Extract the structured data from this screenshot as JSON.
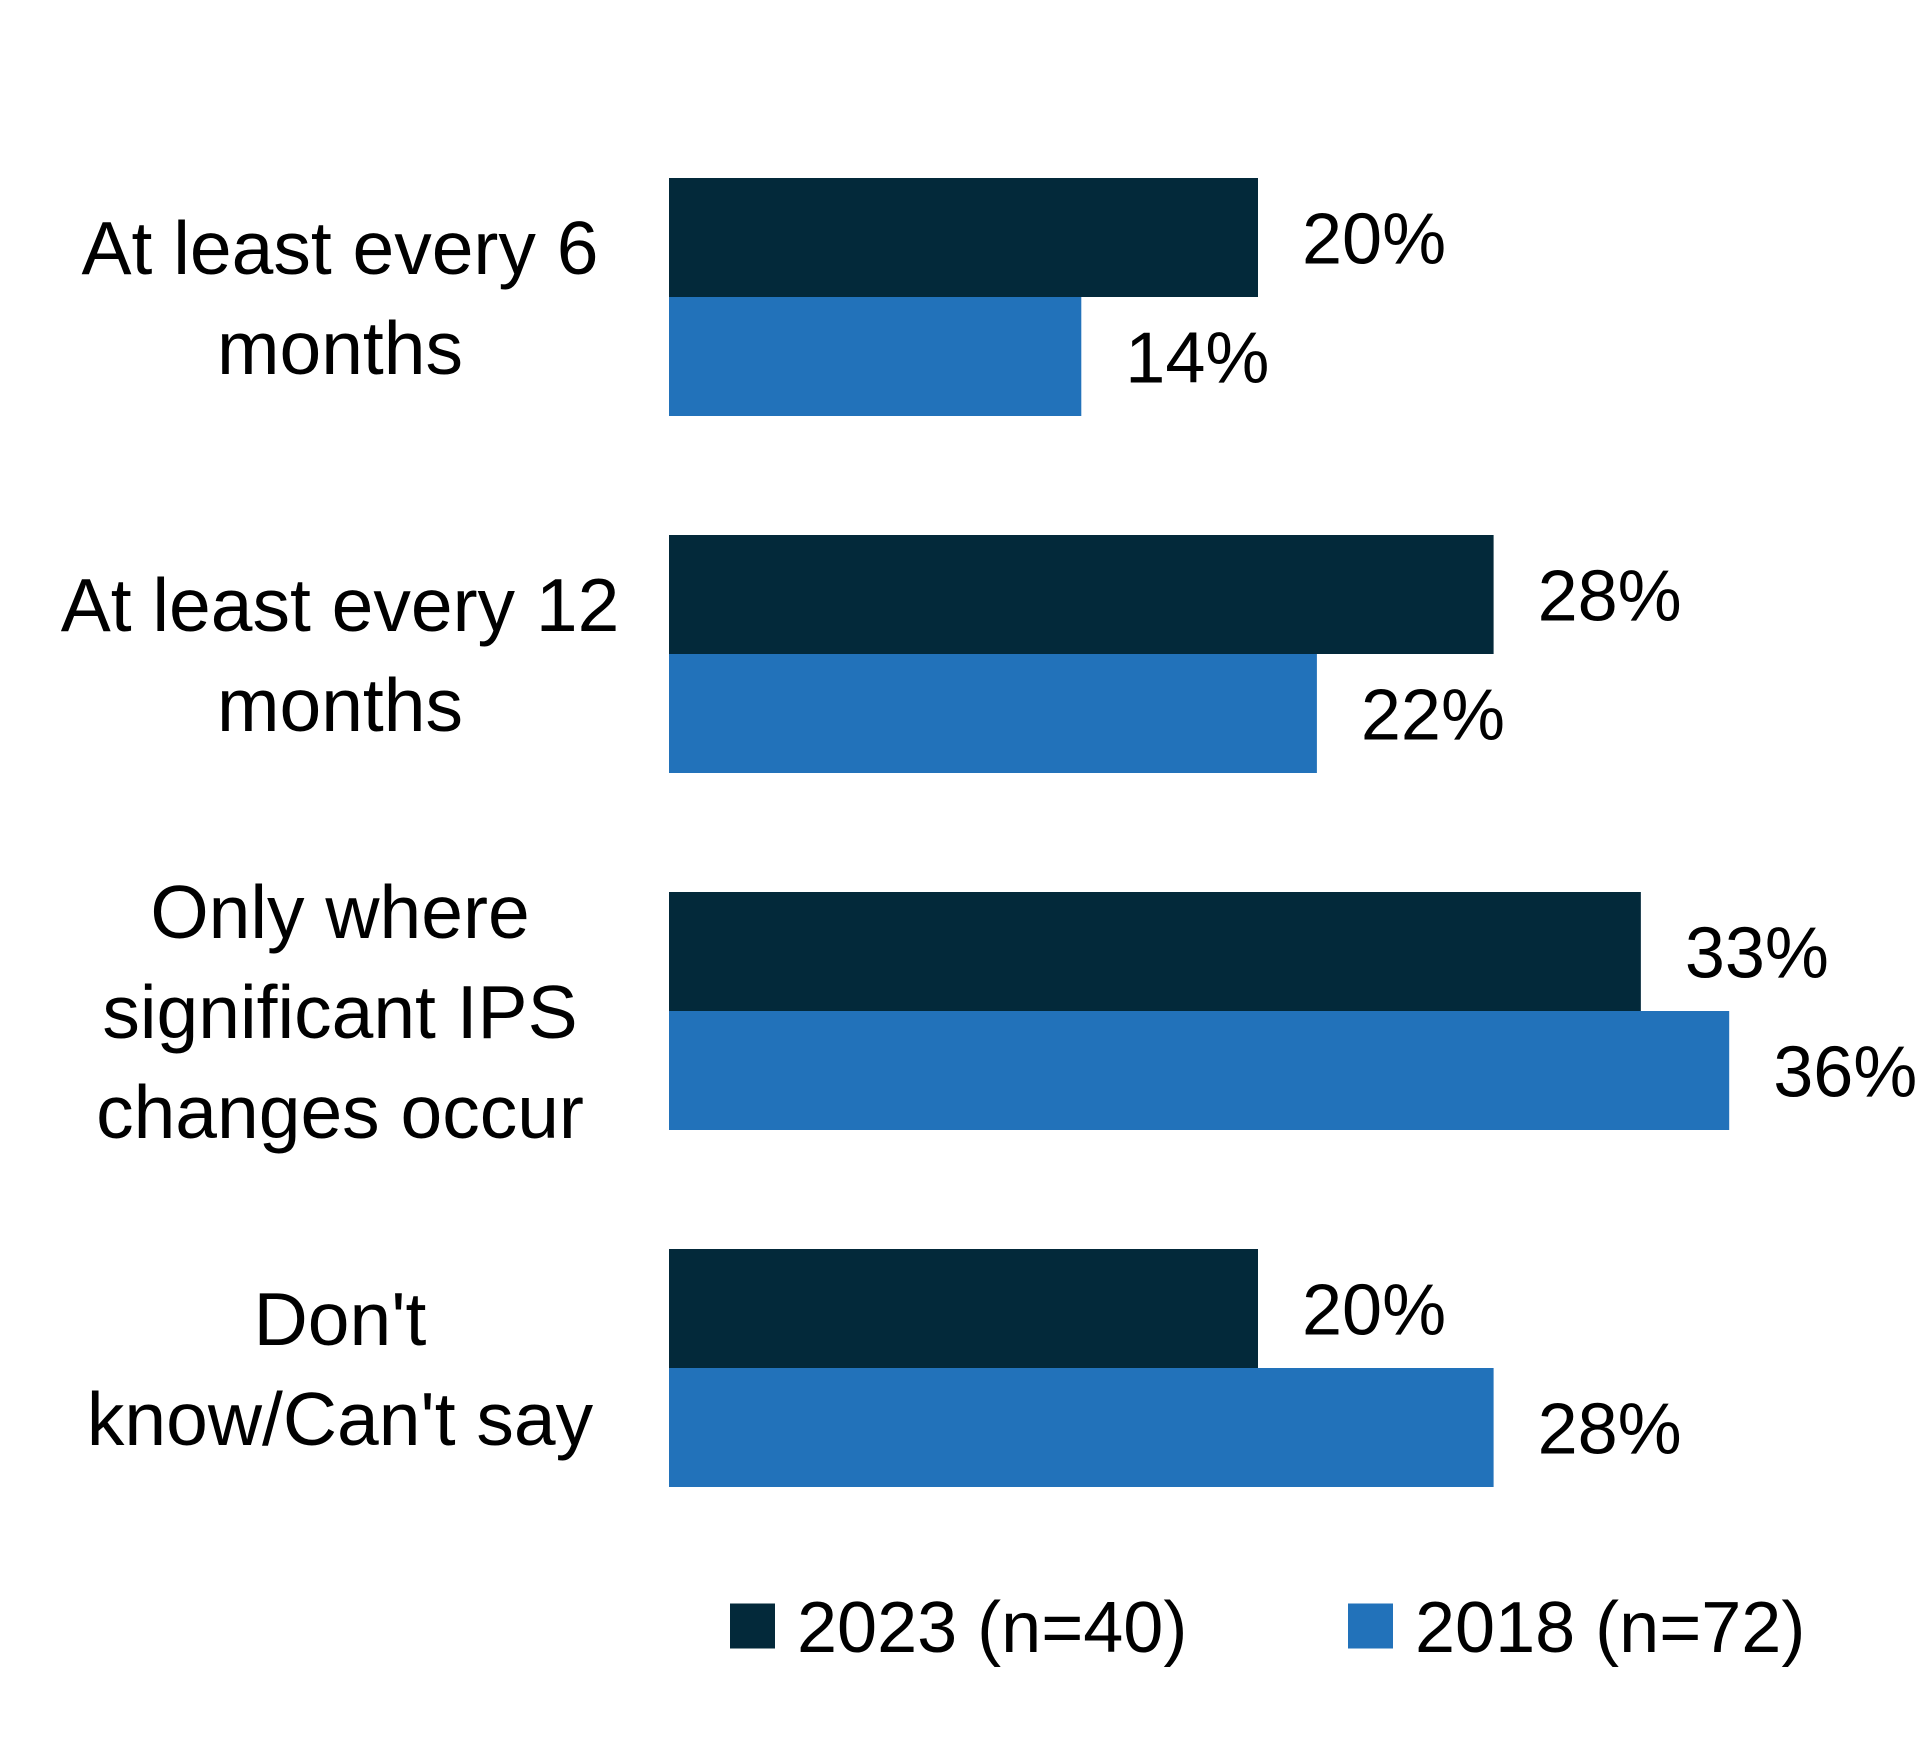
{
  "chart_data": {
    "type": "bar",
    "orientation": "horizontal",
    "title": "",
    "xlabel": "",
    "ylabel": "",
    "grid": false,
    "legend_position": "bottom",
    "value_suffix": "%",
    "categories": [
      [
        "At least every 6",
        "months"
      ],
      [
        "At least every 12",
        "months"
      ],
      [
        "Only where",
        "significant IPS",
        "changes occur"
      ],
      [
        "Don't",
        "know/Can't say"
      ]
    ],
    "series": [
      {
        "name": "2023 (n=40)",
        "color": "#03293A",
        "values": [
          20,
          28,
          33,
          20
        ],
        "labels": [
          "20%",
          "28%",
          "33%",
          "20%"
        ]
      },
      {
        "name": "2018 (n=72)",
        "color": "#2272BA",
        "values": [
          14,
          22,
          36,
          28
        ],
        "labels": [
          "14%",
          "22%",
          "36%",
          "28%"
        ]
      }
    ]
  }
}
